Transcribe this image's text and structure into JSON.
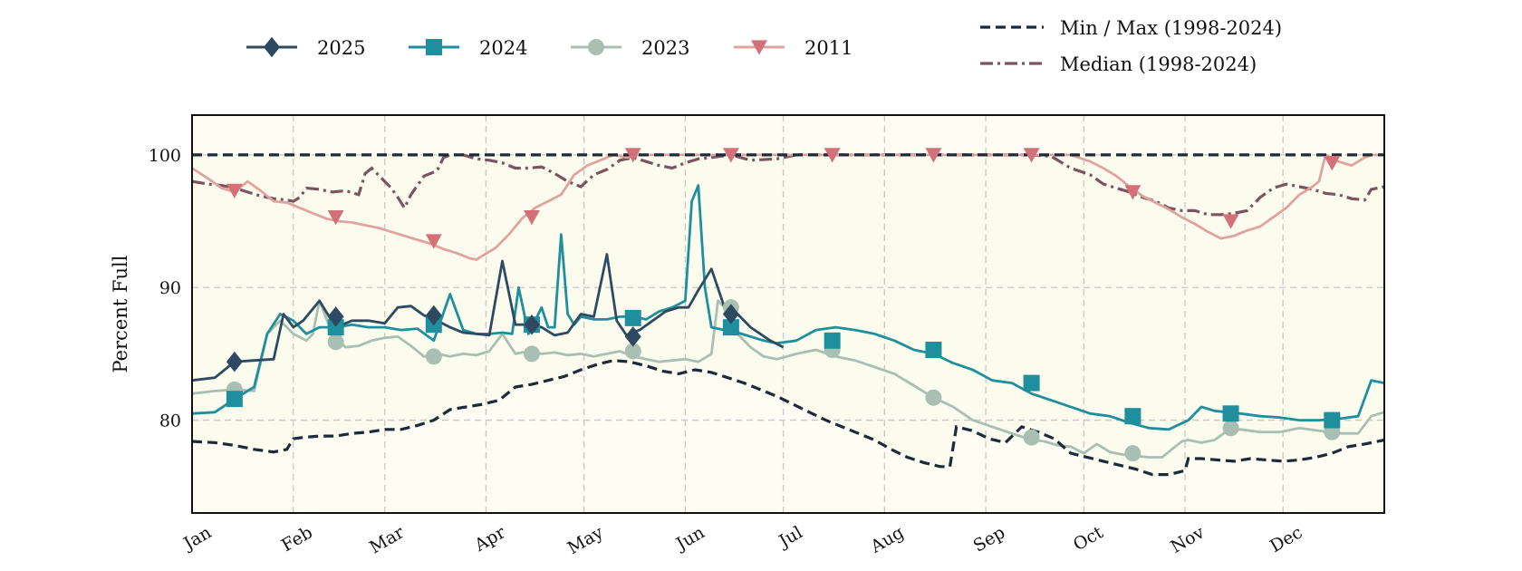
{
  "chart_data": {
    "type": "line",
    "title": "",
    "xlabel": "",
    "ylabel": "Percent Full",
    "ylim": [
      73,
      103
    ],
    "yticks": [
      80,
      90,
      100
    ],
    "xlim": [
      1,
      366
    ],
    "xticks": [
      {
        "label": "Jan",
        "day": 1
      },
      {
        "label": "Feb",
        "day": 32
      },
      {
        "label": "Mar",
        "day": 60
      },
      {
        "label": "Apr",
        "day": 91
      },
      {
        "label": "May",
        "day": 121
      },
      {
        "label": "Jun",
        "day": 152
      },
      {
        "label": "Jul",
        "day": 182
      },
      {
        "label": "Aug",
        "day": 213
      },
      {
        "label": "Sep",
        "day": 244
      },
      {
        "label": "Oct",
        "day": 274
      },
      {
        "label": "Nov",
        "day": 305
      },
      {
        "label": "Dec",
        "day": 335
      }
    ],
    "grid": true,
    "legend_placement": "top",
    "plot_background": "#fdfdf4",
    "band_fill": "#fbfbee",
    "series": [
      {
        "name": "2025",
        "color": "#2e4a62",
        "marker": "diamond",
        "x": [
          1,
          8,
          14,
          20,
          26,
          29,
          32,
          35,
          40,
          45,
          50,
          55,
          60,
          64,
          68,
          72,
          76,
          80,
          84,
          88,
          92,
          96,
          100,
          104,
          108,
          112,
          116,
          120,
          124,
          128,
          131,
          134,
          138,
          142,
          146,
          150,
          153,
          156,
          160,
          164,
          168,
          172,
          178,
          182
        ],
        "y": [
          83.0,
          83.2,
          84.4,
          84.5,
          84.6,
          88.0,
          87.0,
          87.5,
          89.0,
          87.0,
          87.5,
          87.5,
          87.3,
          88.5,
          88.6,
          87.9,
          87.5,
          87.0,
          86.6,
          86.5,
          86.4,
          92.0,
          87.2,
          87.2,
          87.0,
          86.4,
          86.6,
          88.0,
          87.8,
          92.5,
          87.5,
          86.4,
          86.8,
          87.5,
          88.2,
          88.5,
          88.5,
          89.8,
          91.4,
          88.5,
          88.0,
          87.0,
          86.0,
          85.5
        ],
        "markers": [
          [
            14,
            84.4
          ],
          [
            45,
            87.8
          ],
          [
            75,
            87.9
          ],
          [
            105,
            87.2
          ],
          [
            136,
            86.3
          ],
          [
            166,
            88.0
          ]
        ]
      },
      {
        "name": "2024",
        "color": "#1f8f9e",
        "marker": "square",
        "x": [
          1,
          8,
          14,
          20,
          24,
          28,
          32,
          36,
          40,
          45,
          50,
          55,
          60,
          65,
          70,
          75,
          80,
          84,
          88,
          92,
          96,
          99,
          101,
          104,
          108,
          110,
          112,
          114,
          116,
          118,
          120,
          124,
          128,
          132,
          136,
          140,
          144,
          148,
          152,
          154,
          156,
          158,
          160,
          164,
          168,
          172,
          176,
          180,
          186,
          192,
          198,
          204,
          210,
          216,
          222,
          228,
          234,
          240,
          246,
          252,
          258,
          264,
          270,
          276,
          282,
          288,
          294,
          300,
          306,
          310,
          314,
          318,
          322,
          328,
          334,
          340,
          346,
          352,
          358,
          362,
          366
        ],
        "y": [
          80.5,
          80.6,
          81.6,
          82.5,
          86.5,
          88.0,
          87.5,
          86.5,
          87.0,
          87.0,
          87.2,
          87.0,
          87.0,
          86.8,
          86.9,
          86.0,
          89.5,
          86.8,
          86.5,
          86.5,
          86.6,
          86.5,
          90.0,
          86.5,
          88.5,
          87.0,
          87.0,
          94.0,
          88.0,
          87.2,
          87.8,
          87.6,
          87.6,
          87.8,
          87.8,
          87.6,
          88.2,
          88.5,
          89.0,
          96.5,
          97.7,
          90.0,
          87.0,
          86.8,
          86.6,
          86.3,
          86.0,
          85.8,
          86.0,
          86.8,
          87.0,
          86.8,
          86.5,
          86.0,
          85.3,
          85.0,
          84.3,
          83.8,
          83.0,
          82.8,
          82.0,
          81.5,
          81.0,
          80.5,
          80.3,
          79.8,
          79.4,
          79.3,
          80.0,
          81.0,
          80.7,
          80.6,
          80.5,
          80.3,
          80.2,
          80.0,
          80.0,
          80.1,
          80.3,
          83.0,
          82.8
        ],
        "markers": [
          [
            14,
            81.6
          ],
          [
            45,
            87.0
          ],
          [
            75,
            87.2
          ],
          [
            105,
            87.2
          ],
          [
            136,
            87.7
          ],
          [
            166,
            87.0
          ],
          [
            197,
            86.0
          ],
          [
            228,
            85.3
          ],
          [
            258,
            82.8
          ],
          [
            289,
            80.3
          ],
          [
            319,
            80.5
          ],
          [
            350,
            80.0
          ]
        ]
      },
      {
        "name": "2023",
        "color": "#a9bfb2",
        "marker": "circle",
        "x": [
          1,
          8,
          14,
          20,
          24,
          28,
          32,
          36,
          38,
          40,
          44,
          48,
          52,
          56,
          60,
          64,
          68,
          72,
          76,
          80,
          84,
          88,
          92,
          96,
          100,
          104,
          108,
          112,
          116,
          120,
          124,
          128,
          132,
          136,
          140,
          144,
          148,
          152,
          156,
          160,
          162,
          164,
          168,
          172,
          176,
          180,
          186,
          192,
          198,
          204,
          210,
          216,
          222,
          228,
          234,
          240,
          246,
          252,
          258,
          262,
          266,
          270,
          274,
          278,
          282,
          286,
          290,
          294,
          298,
          302,
          304,
          306,
          310,
          314,
          318,
          322,
          328,
          334,
          340,
          346,
          352,
          358,
          362,
          366
        ],
        "y": [
          82.0,
          82.2,
          82.3,
          82.2,
          86.5,
          87.5,
          86.5,
          86.0,
          86.5,
          89.0,
          86.5,
          85.5,
          85.6,
          86.0,
          86.2,
          86.3,
          85.6,
          84.8,
          85.0,
          84.8,
          85.0,
          84.9,
          85.2,
          86.5,
          85.0,
          85.2,
          85.0,
          85.1,
          84.9,
          85.0,
          84.8,
          85.0,
          85.2,
          84.8,
          84.6,
          84.4,
          84.5,
          84.6,
          84.4,
          85.0,
          89.0,
          88.5,
          86.5,
          85.5,
          84.8,
          84.6,
          85.0,
          85.3,
          84.8,
          84.5,
          84.0,
          83.5,
          82.6,
          81.7,
          81.0,
          80.0,
          79.5,
          79.0,
          78.5,
          78.4,
          78.1,
          78.0,
          77.5,
          78.2,
          77.6,
          77.4,
          77.3,
          77.2,
          77.2,
          78.0,
          78.4,
          78.5,
          78.3,
          78.5,
          79.2,
          79.3,
          79.1,
          79.1,
          79.4,
          79.2,
          79.0,
          79.0,
          80.3,
          80.6
        ],
        "markers": [
          [
            14,
            82.3
          ],
          [
            45,
            85.9
          ],
          [
            75,
            84.8
          ],
          [
            105,
            85.0
          ],
          [
            136,
            85.2
          ],
          [
            166,
            88.5
          ],
          [
            197,
            85.3
          ],
          [
            228,
            81.7
          ],
          [
            258,
            78.7
          ],
          [
            289,
            77.5
          ],
          [
            319,
            79.4
          ],
          [
            350,
            79.1
          ]
        ]
      },
      {
        "name": "2011",
        "color": "#e0a4a0",
        "marker": "triangle-down",
        "x": [
          1,
          6,
          10,
          14,
          18,
          22,
          26,
          30,
          34,
          38,
          42,
          46,
          50,
          54,
          58,
          62,
          66,
          70,
          74,
          78,
          82,
          86,
          88,
          90,
          94,
          98,
          102,
          106,
          110,
          114,
          118,
          122,
          126,
          130,
          134,
          138,
          142,
          146,
          150,
          154,
          158,
          162,
          166,
          170,
          174,
          180,
          186,
          192,
          198,
          204,
          210,
          216,
          222,
          228,
          234,
          240,
          246,
          252,
          256,
          260,
          264,
          270,
          276,
          280,
          284,
          288,
          292,
          296,
          300,
          304,
          308,
          312,
          316,
          320,
          324,
          328,
          332,
          336,
          340,
          344,
          346,
          348,
          352,
          356,
          360,
          362,
          366
        ],
        "y": [
          99.0,
          98.2,
          97.5,
          97.2,
          98.0,
          97.3,
          96.5,
          96.4,
          96.0,
          95.6,
          95.2,
          95.0,
          94.9,
          94.7,
          94.5,
          94.2,
          93.9,
          93.6,
          93.3,
          92.9,
          92.6,
          92.2,
          92.1,
          92.4,
          93.0,
          94.0,
          95.2,
          96.0,
          96.5,
          97.0,
          98.5,
          99.2,
          99.6,
          100.0,
          99.8,
          100.0,
          100.0,
          100.0,
          100.0,
          100.0,
          100.0,
          100.0,
          100.0,
          100.0,
          100.0,
          100.0,
          100.0,
          100.0,
          100.0,
          100.0,
          100.0,
          100.0,
          100.0,
          100.0,
          100.0,
          100.0,
          100.0,
          100.0,
          100.0,
          100.0,
          100.0,
          100.0,
          99.5,
          99.0,
          98.4,
          97.6,
          96.9,
          96.4,
          95.9,
          95.3,
          94.8,
          94.2,
          93.7,
          93.9,
          94.3,
          94.6,
          95.3,
          96.0,
          97.0,
          97.6,
          98.0,
          100.0,
          99.5,
          99.2,
          99.8,
          100.0,
          100.0
        ],
        "markers": [
          [
            14,
            97.3
          ],
          [
            45,
            95.3
          ],
          [
            75,
            93.5
          ],
          [
            105,
            95.3
          ],
          [
            136,
            100.0
          ],
          [
            166,
            100.0
          ],
          [
            197,
            100.0
          ],
          [
            228,
            100.0
          ],
          [
            258,
            100.0
          ],
          [
            289,
            97.2
          ],
          [
            319,
            95.0
          ],
          [
            350,
            99.4
          ]
        ]
      }
    ],
    "reference_series": [
      {
        "name": "Min / Max (1998-2024)",
        "color": "#1c2a3a",
        "dash": "dashed",
        "min": {
          "x": [
            1,
            8,
            14,
            20,
            26,
            30,
            32,
            35,
            40,
            45,
            50,
            55,
            60,
            65,
            70,
            75,
            80,
            85,
            90,
            95,
            100,
            105,
            110,
            115,
            120,
            125,
            130,
            135,
            140,
            145,
            150,
            155,
            160,
            165,
            170,
            175,
            180,
            185,
            190,
            195,
            200,
            205,
            210,
            215,
            220,
            225,
            230,
            233,
            235,
            240,
            245,
            250,
            255,
            260,
            265,
            270,
            275,
            280,
            285,
            290,
            295,
            300,
            305,
            306,
            310,
            315,
            320,
            325,
            330,
            335,
            340,
            345,
            350,
            355,
            360,
            366
          ],
          "y": [
            78.4,
            78.3,
            78.1,
            77.8,
            77.6,
            77.8,
            78.6,
            78.7,
            78.8,
            78.8,
            79.0,
            79.1,
            79.3,
            79.3,
            79.6,
            80.0,
            80.8,
            81.0,
            81.2,
            81.5,
            82.5,
            82.7,
            83.0,
            83.3,
            83.8,
            84.2,
            84.5,
            84.4,
            84.1,
            83.7,
            83.5,
            83.8,
            83.6,
            83.2,
            82.8,
            82.3,
            81.8,
            81.2,
            80.6,
            80.0,
            79.5,
            79.0,
            78.5,
            77.8,
            77.2,
            76.8,
            76.5,
            76.5,
            79.5,
            79.2,
            78.6,
            78.3,
            79.5,
            79.1,
            78.6,
            77.5,
            77.2,
            76.9,
            76.6,
            76.3,
            75.9,
            75.9,
            76.2,
            77.1,
            77.1,
            77.0,
            76.9,
            77.1,
            77.0,
            76.9,
            77.0,
            77.2,
            77.5,
            78.0,
            78.2,
            78.5
          ]
        },
        "max": {
          "x": [
            1,
            366
          ],
          "y": [
            100.0,
            100.0
          ]
        }
      },
      {
        "name": "Median (1998-2024)",
        "color": "#7a5560",
        "dash": "dashdot",
        "x": [
          1,
          6,
          10,
          14,
          18,
          22,
          26,
          30,
          32,
          34,
          36,
          40,
          44,
          48,
          52,
          54,
          56,
          58,
          60,
          62,
          64,
          66,
          68,
          72,
          76,
          78,
          80,
          84,
          88,
          92,
          96,
          100,
          104,
          108,
          112,
          116,
          120,
          124,
          128,
          132,
          136,
          140,
          144,
          148,
          152,
          156,
          160,
          166,
          172,
          180,
          186,
          192,
          198,
          204,
          210,
          216,
          222,
          228,
          234,
          240,
          246,
          252,
          258,
          264,
          270,
          276,
          280,
          284,
          288,
          292,
          296,
          300,
          304,
          308,
          312,
          316,
          320,
          324,
          328,
          332,
          336,
          340,
          344,
          348,
          352,
          356,
          360,
          362,
          366
        ],
        "y": [
          98.0,
          97.8,
          97.7,
          97.5,
          97.2,
          96.9,
          96.7,
          96.6,
          96.5,
          96.8,
          97.5,
          97.4,
          97.2,
          97.3,
          97.0,
          98.6,
          99.0,
          98.5,
          98.0,
          97.5,
          96.8,
          96.0,
          97.0,
          98.4,
          98.8,
          99.8,
          100.0,
          100.0,
          99.7,
          99.6,
          99.4,
          99.0,
          99.0,
          99.1,
          98.6,
          98.0,
          97.6,
          98.5,
          98.9,
          99.6,
          99.8,
          99.5,
          99.2,
          99.0,
          99.4,
          99.7,
          99.8,
          100.0,
          99.6,
          99.7,
          100.0,
          100.0,
          100.0,
          100.0,
          100.0,
          100.0,
          100.0,
          100.0,
          100.0,
          100.0,
          100.0,
          100.0,
          100.0,
          99.9,
          99.0,
          98.5,
          97.8,
          97.5,
          97.2,
          96.8,
          96.5,
          96.0,
          95.8,
          95.8,
          95.5,
          95.5,
          95.6,
          95.8,
          96.8,
          97.5,
          97.8,
          97.6,
          97.4,
          97.1,
          97.0,
          96.7,
          96.6,
          97.4,
          97.6
        ]
      }
    ]
  }
}
